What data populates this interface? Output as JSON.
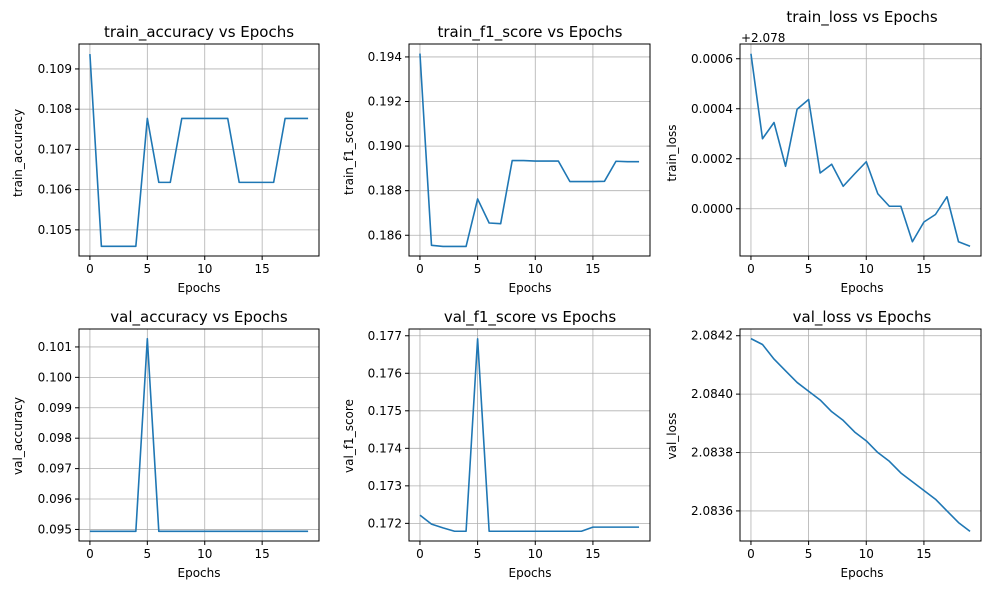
{
  "chart_data": [
    {
      "type": "line",
      "title": "train_accuracy vs Epochs",
      "xlabel": "Epochs",
      "ylabel": "train_accuracy",
      "grid": true,
      "color": "#1f77b4",
      "x": [
        0,
        1,
        2,
        3,
        4,
        5,
        6,
        7,
        8,
        9,
        10,
        11,
        12,
        13,
        14,
        15,
        16,
        17,
        18,
        19
      ],
      "y": [
        0.10937,
        0.10459,
        0.10459,
        0.10459,
        0.10459,
        0.10777,
        0.10618,
        0.10618,
        0.10777,
        0.10777,
        0.10777,
        0.10777,
        0.10777,
        0.10618,
        0.10618,
        0.10618,
        0.10618,
        0.10777,
        0.10777,
        0.10777
      ],
      "xlim": [
        -0.95,
        19.95
      ],
      "ylim": [
        0.10435,
        0.10962
      ],
      "xticks": [
        0,
        5,
        10,
        15
      ],
      "xtick_labels": [
        "0",
        "5",
        "10",
        "15"
      ],
      "yticks": [
        0.105,
        0.106,
        0.107,
        0.108,
        0.109
      ],
      "ytick_labels": [
        "0.105",
        "0.106",
        "0.107",
        "0.108",
        "0.109"
      ],
      "offset_text": ""
    },
    {
      "type": "line",
      "title": "train_f1_score vs Epochs",
      "xlabel": "Epochs",
      "ylabel": "train_f1_score",
      "grid": true,
      "color": "#1f77b4",
      "x": [
        0,
        1,
        2,
        3,
        4,
        5,
        6,
        7,
        8,
        9,
        10,
        11,
        12,
        13,
        14,
        15,
        16,
        17,
        18,
        19
      ],
      "y": [
        0.19415,
        0.18555,
        0.1855,
        0.1855,
        0.1855,
        0.18763,
        0.18655,
        0.18652,
        0.18935,
        0.18935,
        0.18933,
        0.18933,
        0.18933,
        0.18841,
        0.18841,
        0.18841,
        0.18842,
        0.18932,
        0.1893,
        0.1893
      ],
      "xlim": [
        -0.95,
        19.95
      ],
      "ylim": [
        0.18507,
        0.19458
      ],
      "xticks": [
        0,
        5,
        10,
        15
      ],
      "xtick_labels": [
        "0",
        "5",
        "10",
        "15"
      ],
      "yticks": [
        0.186,
        0.188,
        0.19,
        0.192,
        0.194
      ],
      "ytick_labels": [
        "0.186",
        "0.188",
        "0.190",
        "0.192",
        "0.194"
      ],
      "offset_text": ""
    },
    {
      "type": "line",
      "title": "train_loss vs Epochs",
      "xlabel": "Epochs",
      "ylabel": "train_loss",
      "grid": true,
      "color": "#1f77b4",
      "x": [
        0,
        1,
        2,
        3,
        4,
        5,
        6,
        7,
        8,
        9,
        10,
        11,
        12,
        13,
        14,
        15,
        16,
        17,
        18,
        19
      ],
      "y": [
        0.00062,
        0.00028,
        0.000345,
        0.00017,
        0.000398,
        0.000437,
        0.000143,
        0.000178,
        9e-05,
        0.00014,
        0.000188,
        6e-05,
        1e-05,
        1e-05,
        -0.000132,
        -5.3e-05,
        -2.3e-05,
        4.8e-05,
        -0.000132,
        -0.00015
      ],
      "xlim": [
        -0.95,
        19.95
      ],
      "ylim": [
        -0.000189,
        0.000659
      ],
      "xticks": [
        0,
        5,
        10,
        15
      ],
      "xtick_labels": [
        "0",
        "5",
        "10",
        "15"
      ],
      "yticks": [
        0.0,
        0.0002,
        0.0004,
        0.0006
      ],
      "ytick_labels": [
        "0.0000",
        "0.0002",
        "0.0004",
        "0.0006"
      ],
      "offset_text": "+2.078"
    },
    {
      "type": "line",
      "title": "val_accuracy vs Epochs",
      "xlabel": "Epochs",
      "ylabel": "val_accuracy",
      "grid": true,
      "color": "#1f77b4",
      "x": [
        0,
        1,
        2,
        3,
        4,
        5,
        6,
        7,
        8,
        9,
        10,
        11,
        12,
        13,
        14,
        15,
        16,
        17,
        18,
        19
      ],
      "y": [
        0.09494,
        0.09494,
        0.09494,
        0.09494,
        0.09494,
        0.10127,
        0.09494,
        0.09494,
        0.09494,
        0.09494,
        0.09494,
        0.09494,
        0.09494,
        0.09494,
        0.09494,
        0.09494,
        0.09494,
        0.09494,
        0.09494,
        0.09494
      ],
      "xlim": [
        -0.95,
        19.95
      ],
      "ylim": [
        0.09462,
        0.10159
      ],
      "xticks": [
        0,
        5,
        10,
        15
      ],
      "xtick_labels": [
        "0",
        "5",
        "10",
        "15"
      ],
      "yticks": [
        0.095,
        0.096,
        0.097,
        0.098,
        0.099,
        0.1,
        0.101
      ],
      "ytick_labels": [
        "0.095",
        "0.096",
        "0.097",
        "0.098",
        "0.099",
        "0.100",
        "0.101"
      ],
      "offset_text": ""
    },
    {
      "type": "line",
      "title": "val_f1_score vs Epochs",
      "xlabel": "Epochs",
      "ylabel": "val_f1_score",
      "grid": true,
      "color": "#1f77b4",
      "x": [
        0,
        1,
        2,
        3,
        4,
        5,
        6,
        7,
        8,
        9,
        10,
        11,
        12,
        13,
        14,
        15,
        16,
        17,
        18,
        19
      ],
      "y": [
        0.17222,
        0.17198,
        0.17188,
        0.17179,
        0.17179,
        0.17692,
        0.17179,
        0.17179,
        0.17179,
        0.17179,
        0.17179,
        0.17179,
        0.17179,
        0.17179,
        0.17179,
        0.1719,
        0.1719,
        0.1719,
        0.1719,
        0.1719
      ],
      "xlim": [
        -0.95,
        19.95
      ],
      "ylim": [
        0.17153,
        0.17718
      ],
      "xticks": [
        0,
        5,
        10,
        15
      ],
      "xtick_labels": [
        "0",
        "5",
        "10",
        "15"
      ],
      "yticks": [
        0.172,
        0.173,
        0.174,
        0.175,
        0.176,
        0.177
      ],
      "ytick_labels": [
        "0.172",
        "0.173",
        "0.174",
        "0.175",
        "0.176",
        "0.177"
      ],
      "offset_text": ""
    },
    {
      "type": "line",
      "title": "val_loss vs Epochs",
      "xlabel": "Epochs",
      "ylabel": "val_loss",
      "grid": true,
      "color": "#1f77b4",
      "x": [
        0,
        1,
        2,
        3,
        4,
        5,
        6,
        7,
        8,
        9,
        10,
        11,
        12,
        13,
        14,
        15,
        16,
        17,
        18,
        19
      ],
      "y": [
        2.08419,
        2.08417,
        2.08412,
        2.08408,
        2.08404,
        2.08401,
        2.08398,
        2.08394,
        2.08391,
        2.08387,
        2.08384,
        2.0838,
        2.08377,
        2.08373,
        2.0837,
        2.08367,
        2.08364,
        2.0836,
        2.08356,
        2.08353
      ],
      "xlim": [
        -0.95,
        19.95
      ],
      "ylim": [
        2.083497,
        2.084223
      ],
      "xticks": [
        0,
        5,
        10,
        15
      ],
      "xtick_labels": [
        "0",
        "5",
        "10",
        "15"
      ],
      "yticks": [
        2.0836,
        2.0838,
        2.084,
        2.0842
      ],
      "ytick_labels": [
        "2.0836",
        "2.0838",
        "2.0840",
        "2.0842"
      ],
      "offset_text": ""
    }
  ]
}
